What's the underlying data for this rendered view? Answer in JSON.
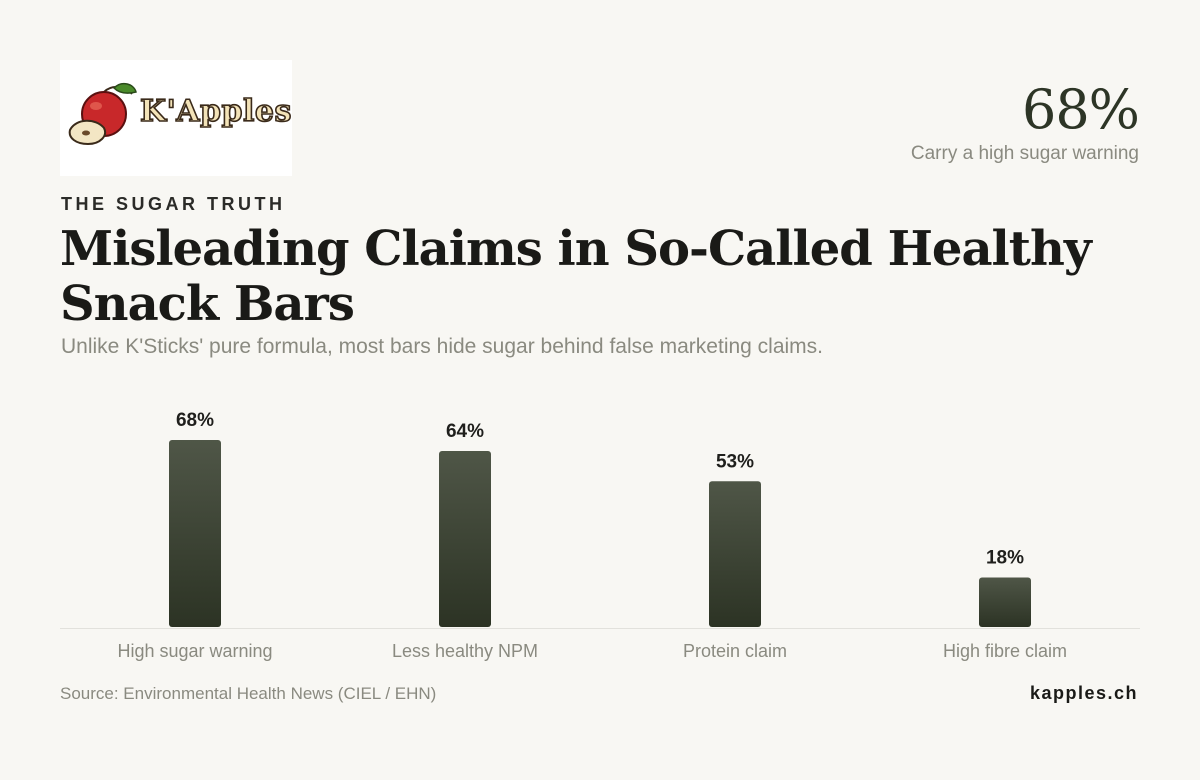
{
  "brand": {
    "logo_text": "K'Apples"
  },
  "highlight": {
    "value": "68%",
    "caption": "Carry a high sugar warning"
  },
  "header": {
    "eyebrow": "THE SUGAR TRUTH",
    "title": "Misleading Claims in So-Called Healthy Snack Bars",
    "subtitle": "Unlike K'Sticks' pure formula, most bars hide sugar behind false marketing claims."
  },
  "colors": {
    "bar_top": "#4f5647",
    "bar_bottom": "#2c3324",
    "background": "#f8f7f3",
    "accent": "#2d3526"
  },
  "chart_data": {
    "type": "bar",
    "categories": [
      "High sugar warning",
      "Less healthy NPM",
      "Protein claim",
      "High fibre claim"
    ],
    "values": [
      68,
      64,
      53,
      18
    ],
    "value_labels": [
      "68%",
      "64%",
      "53%",
      "18%"
    ],
    "ylim": [
      0,
      100
    ],
    "grid": false,
    "legend": "none"
  },
  "footer": {
    "source": "Source: Environmental Health News (CIEL / EHN)",
    "site": "kapples.ch"
  }
}
